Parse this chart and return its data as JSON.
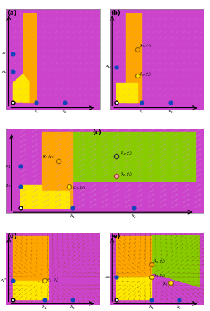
{
  "fig_width": 2.98,
  "fig_height": 4.4,
  "dpi": 100,
  "colors": {
    "yellow": "#FFE800",
    "orange": "#FFA500",
    "purple": "#CC44CC",
    "green": "#88CC00",
    "background": "#FFFFFF",
    "blue_dot": "#1144BB",
    "arrow_purple": "#DD88DD",
    "arrow_orange": "#CC8800"
  },
  "panels": [
    "(a)",
    "(b)",
    "(c)",
    "(d)",
    "(e)"
  ]
}
